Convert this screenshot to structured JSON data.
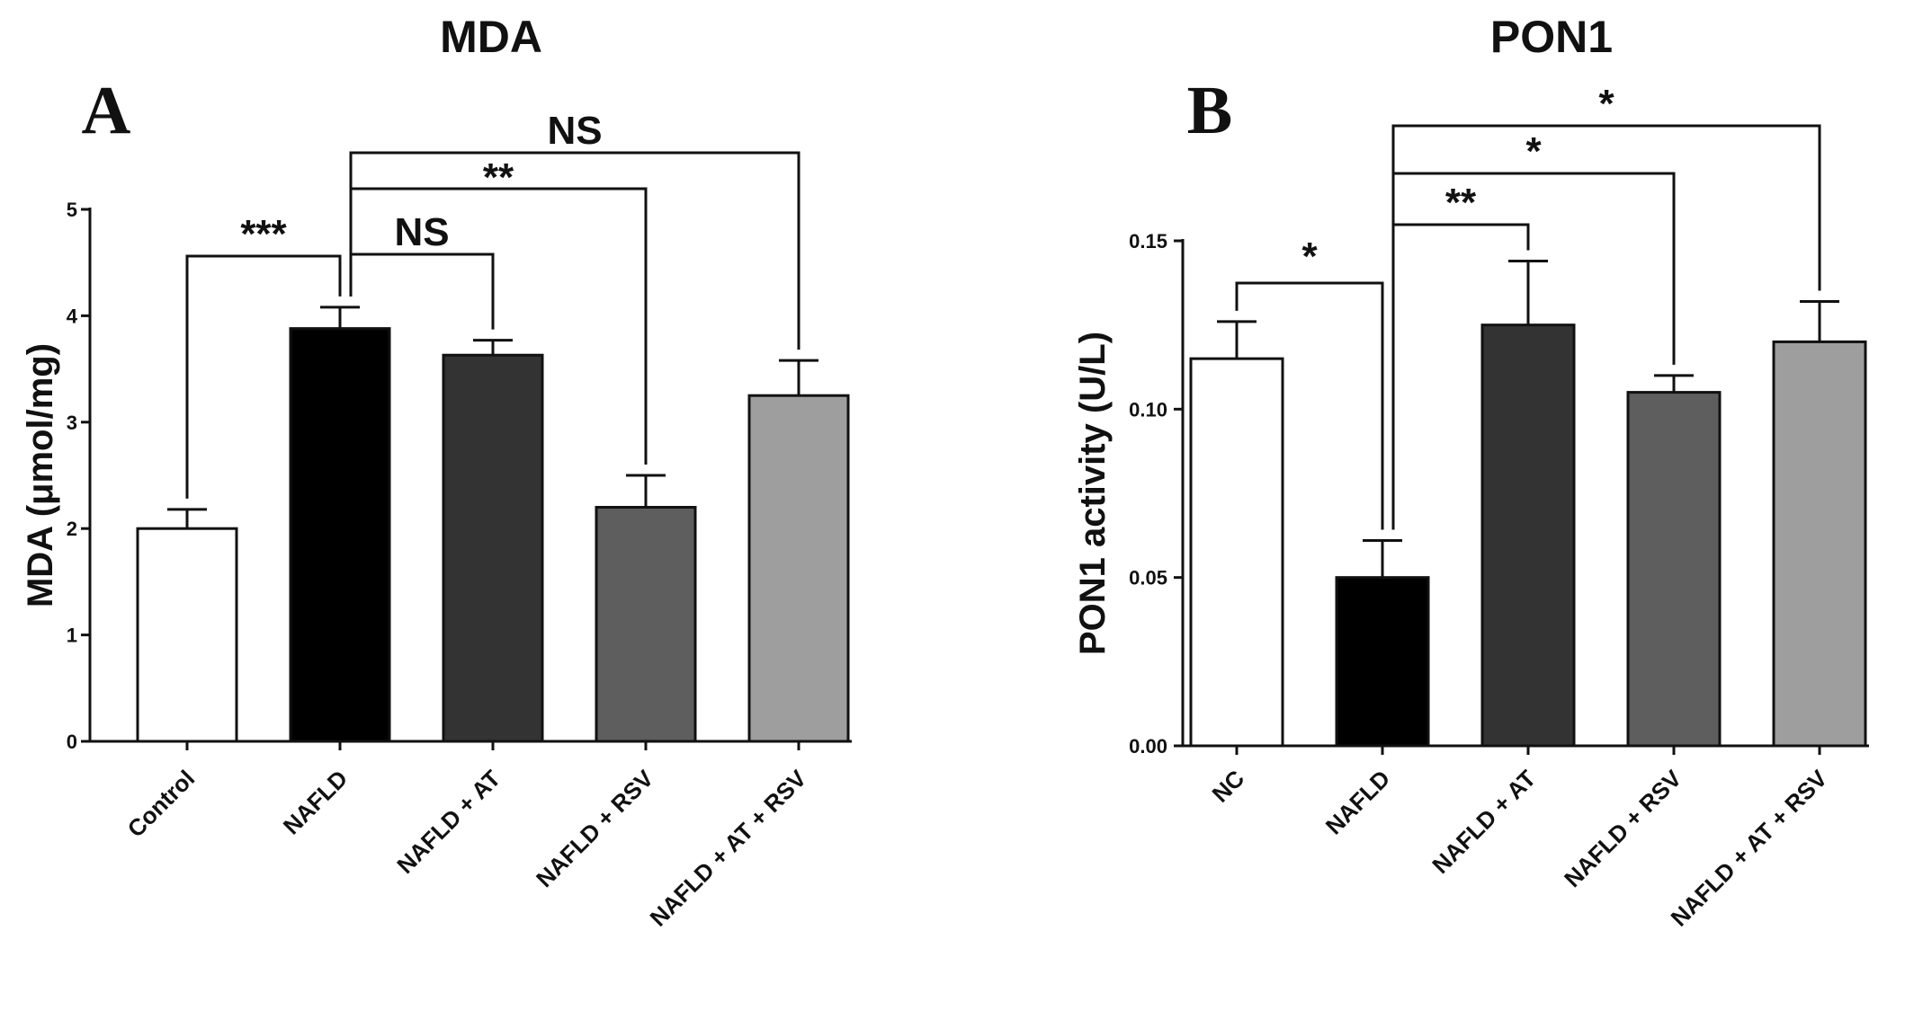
{
  "colors": {
    "bar_fills": [
      "#ffffff",
      "#000000",
      "#333333",
      "#5e5e5e",
      "#9e9e9e"
    ],
    "stroke": "#111111"
  },
  "chart_data": [
    {
      "type": "bar",
      "title": "MDA",
      "panel_label": "A",
      "ylabel": "MDA (μmol/mg)",
      "xlabel": "",
      "ylim": [
        0,
        5
      ],
      "yticks": [
        "0",
        "1",
        "2",
        "3",
        "4",
        "5"
      ],
      "categories": [
        "Control",
        "NAFLD",
        "NAFLD + AT",
        "NAFLD + RSV",
        "NAFLD + AT + RSV"
      ],
      "values": [
        2.0,
        3.88,
        3.63,
        2.2,
        3.25
      ],
      "errors": [
        0.18,
        0.2,
        0.14,
        0.3,
        0.33
      ],
      "grid": false,
      "annotations": [
        {
          "label": "***",
          "from": 0,
          "to": 1
        },
        {
          "label": "NS",
          "from": 1,
          "to": 2
        },
        {
          "label": "**",
          "from": 1,
          "to": 3
        },
        {
          "label": "NS",
          "from": 1,
          "to": 4
        }
      ]
    },
    {
      "type": "bar",
      "title": "PON1",
      "panel_label": "B",
      "ylabel": "PON1 activity (U/L)",
      "xlabel": "",
      "ylim": [
        0,
        0.15
      ],
      "yticks": [
        "0.00",
        "0.05",
        "0.10",
        "0.15"
      ],
      "categories": [
        "NC",
        "NAFLD",
        "NAFLD + AT",
        "NAFLD + RSV",
        "NAFLD + AT + RSV"
      ],
      "values": [
        0.115,
        0.05,
        0.125,
        0.105,
        0.12
      ],
      "errors": [
        0.011,
        0.011,
        0.019,
        0.005,
        0.012
      ],
      "grid": false,
      "annotations": [
        {
          "label": "*",
          "from": 0,
          "to": 1
        },
        {
          "label": "**",
          "from": 1,
          "to": 2
        },
        {
          "label": "*",
          "from": 1,
          "to": 3
        },
        {
          "label": "*",
          "from": 1,
          "to": 4
        }
      ]
    }
  ]
}
